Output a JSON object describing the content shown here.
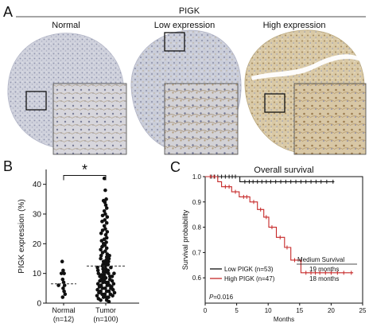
{
  "panels": {
    "a": {
      "letter": "A",
      "header": "PIGK",
      "groups": [
        "Normal",
        "Low expression",
        "High expression"
      ]
    },
    "b": {
      "letter": "B",
      "significance": "*"
    },
    "c": {
      "letter": "C"
    }
  },
  "colors": {
    "normal_tissue": "#c9cbd8",
    "low_tissue": "#c8cad6",
    "high_tissue": "#d6c7a9",
    "low_curve": "#111111",
    "high_curve": "#c62828"
  },
  "chart_data": [
    {
      "type": "scatter",
      "ylabel": "PIGK expression (%)",
      "ylim": [
        0,
        45
      ],
      "yticks": [
        0,
        10,
        20,
        30,
        40
      ],
      "categories": [
        "Normal\n(n=12)",
        "Tumor\n(n=100)"
      ],
      "category_labels": [
        [
          "Normal",
          "(n=12)"
        ],
        [
          "Tumor",
          "(n=100)"
        ]
      ],
      "medians": [
        6.5,
        12.5
      ],
      "series": [
        {
          "values": [
            14,
            11,
            10,
            10,
            8,
            7,
            6,
            6,
            5,
            4,
            3,
            2
          ]
        },
        {
          "values": [
            42,
            38,
            35,
            34.5,
            34,
            33,
            32,
            31,
            30,
            29.5,
            29,
            28,
            27.5,
            27,
            26,
            25,
            24.5,
            24,
            23.5,
            23,
            22,
            21.5,
            21,
            20.5,
            20,
            19.5,
            19,
            18.5,
            18,
            17.5,
            17,
            16.5,
            16,
            16,
            15.5,
            15,
            15,
            14.5,
            14,
            14,
            13.5,
            13,
            13,
            12.5,
            12.5,
            12,
            12,
            11.5,
            11.5,
            11,
            11,
            10.5,
            10.5,
            10,
            10,
            10,
            9.5,
            9.5,
            9,
            9,
            9,
            8.5,
            8.5,
            8,
            8,
            8,
            7.5,
            7.5,
            7,
            7,
            7,
            6.5,
            6.5,
            6,
            6,
            6,
            5.5,
            5.5,
            5,
            5,
            5,
            4.5,
            4.5,
            4,
            4,
            4,
            3.5,
            3.5,
            3,
            3,
            3,
            2.5,
            2.5,
            2,
            2,
            2,
            1.5,
            1,
            1,
            0.5
          ]
        }
      ]
    },
    {
      "type": "line",
      "title": "Overall survival",
      "xlabel": "Months",
      "ylabel": "Survival probability",
      "xlim": [
        0,
        25
      ],
      "ylim": [
        0.5,
        1.0
      ],
      "xticks": [
        0,
        5,
        10,
        15,
        20,
        25
      ],
      "yticks": [
        0.6,
        0.7,
        0.8,
        0.9,
        1.0
      ],
      "series": [
        {
          "name": "Low PIGK (n=53)",
          "steps": [
            [
              0,
              1.0
            ],
            [
              5.5,
              1.0
            ],
            [
              5.5,
              0.98
            ],
            [
              20.5,
              0.98
            ]
          ],
          "censors": [
            1,
            1.5,
            2,
            2.6,
            3.2,
            3.8,
            4.3,
            4.8,
            6.3,
            7,
            7.6,
            8.3,
            9,
            9.7,
            10.4,
            11.2,
            12,
            12.8,
            13.6,
            14.4,
            15.2,
            16,
            16.8,
            17.6,
            18.4,
            19.3,
            20.3
          ]
        },
        {
          "name": "High PIGK (n/47)",
          "steps": [
            [
              0,
              1.0
            ],
            [
              2,
              1.0
            ],
            [
              2,
              0.98
            ],
            [
              2.6,
              0.98
            ],
            [
              2.6,
              0.96
            ],
            [
              4.2,
              0.96
            ],
            [
              4.2,
              0.94
            ],
            [
              5.4,
              0.94
            ],
            [
              5.4,
              0.92
            ],
            [
              7.1,
              0.92
            ],
            [
              7.1,
              0.9
            ],
            [
              8.3,
              0.9
            ],
            [
              8.3,
              0.87
            ],
            [
              9.3,
              0.87
            ],
            [
              9.3,
              0.84
            ],
            [
              10.1,
              0.84
            ],
            [
              10.1,
              0.8
            ],
            [
              11.3,
              0.8
            ],
            [
              11.3,
              0.76
            ],
            [
              12.6,
              0.76
            ],
            [
              12.6,
              0.72
            ],
            [
              13.6,
              0.72
            ],
            [
              13.6,
              0.67
            ],
            [
              15.2,
              0.67
            ],
            [
              15.2,
              0.62
            ],
            [
              23.5,
              0.62
            ]
          ],
          "censors": [
            0.8,
            1.4,
            3.2,
            3.8,
            4.8,
            6.1,
            6.6,
            7.7,
            8.8,
            9.7,
            10.6,
            11.9,
            13,
            14.2,
            16,
            16.8,
            17.5,
            18.2,
            19.1,
            20,
            21,
            22,
            23.2
          ]
        }
      ],
      "legend_entries": [
        "Low PIGK (n=53)",
        "High PIGK (n=47)"
      ],
      "survival_header": "Medium Survival",
      "survival_values": [
        "19 months",
        "18 months"
      ],
      "p_value": "=0.016",
      "p_symbol": "P"
    }
  ]
}
